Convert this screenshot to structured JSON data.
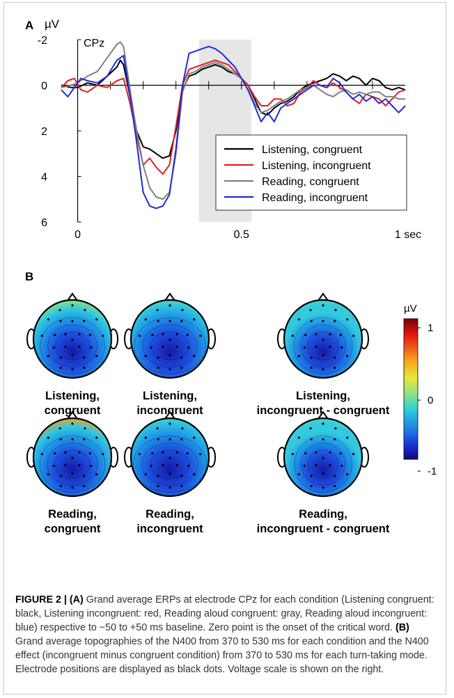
{
  "panel_a": {
    "label": "A",
    "y_unit": "µV",
    "electrode": "CPz",
    "x_unit_label": "1 sec",
    "chart_data": {
      "type": "line",
      "title": "",
      "xlabel": "",
      "ylabel": "µV",
      "xlim": [
        -0.05,
        1.0
      ],
      "ylim": [
        -2,
        6
      ],
      "y_inverted": true,
      "x_ticks": [
        "0",
        "0.5",
        "1 sec"
      ],
      "y_ticks": [
        "-2",
        "0",
        "2",
        "4",
        "6"
      ],
      "highlight_window": [
        0.37,
        0.53
      ],
      "legend_position": "right",
      "series": [
        {
          "name": "Listening, congruent",
          "color": "#000000",
          "x": [
            -0.05,
            -0.02,
            0.0,
            0.03,
            0.06,
            0.09,
            0.12,
            0.13,
            0.14,
            0.16,
            0.18,
            0.2,
            0.22,
            0.24,
            0.26,
            0.28,
            0.3,
            0.32,
            0.34,
            0.36,
            0.38,
            0.4,
            0.42,
            0.44,
            0.46,
            0.48,
            0.5,
            0.52,
            0.54,
            0.56,
            0.58,
            0.6,
            0.62,
            0.64,
            0.66,
            0.68,
            0.7,
            0.72,
            0.74,
            0.76,
            0.78,
            0.8,
            0.82,
            0.84,
            0.86,
            0.88,
            0.9,
            0.92,
            0.94,
            0.96,
            0.98,
            1.0
          ],
          "y": [
            0.0,
            0.1,
            0.1,
            -0.1,
            0.0,
            -0.4,
            -0.8,
            -1.1,
            -0.9,
            0.5,
            2.0,
            2.7,
            2.8,
            3.0,
            3.2,
            3.1,
            2.0,
            0.2,
            -0.4,
            -0.5,
            -0.7,
            -0.8,
            -0.9,
            -0.8,
            -0.6,
            -0.5,
            -0.3,
            0.0,
            0.6,
            1.2,
            1.3,
            1.0,
            0.8,
            0.7,
            0.5,
            0.2,
            0.0,
            -0.1,
            -0.2,
            -0.3,
            -0.5,
            -0.4,
            -0.2,
            -0.4,
            -0.3,
            0.0,
            -0.3,
            -0.2,
            0.1,
            0.2,
            0.1,
            0.2
          ]
        },
        {
          "name": "Listening, incongruent",
          "color": "#e0201e",
          "x": [
            -0.05,
            -0.03,
            -0.01,
            0.01,
            0.03,
            0.06,
            0.09,
            0.12,
            0.14,
            0.16,
            0.18,
            0.2,
            0.22,
            0.24,
            0.26,
            0.28,
            0.3,
            0.32,
            0.34,
            0.36,
            0.38,
            0.4,
            0.42,
            0.44,
            0.46,
            0.48,
            0.5,
            0.52,
            0.54,
            0.56,
            0.58,
            0.6,
            0.62,
            0.64,
            0.66,
            0.68,
            0.7,
            0.72,
            0.74,
            0.76,
            0.78,
            0.8,
            0.82,
            0.84,
            0.86,
            0.88,
            0.9,
            0.92,
            0.94,
            0.96,
            0.98,
            1.0
          ],
          "y": [
            0.1,
            -0.2,
            -0.3,
            0.2,
            0.3,
            0.0,
            0.1,
            -0.2,
            -0.3,
            0.8,
            2.2,
            3.5,
            3.2,
            3.6,
            3.9,
            3.5,
            1.8,
            0.0,
            -0.7,
            -0.8,
            -0.9,
            -1.0,
            -1.1,
            -1.0,
            -0.9,
            -0.6,
            -0.3,
            0.0,
            0.5,
            0.9,
            0.9,
            0.6,
            0.6,
            0.9,
            0.8,
            0.3,
            0.1,
            -0.2,
            0.0,
            0.1,
            -0.1,
            0.1,
            0.3,
            0.6,
            0.8,
            0.4,
            0.5,
            0.6,
            0.9,
            0.6,
            0.3,
            0.2
          ]
        },
        {
          "name": "Reading, congruent",
          "color": "#7f7f7f",
          "x": [
            -0.05,
            -0.02,
            0.0,
            0.03,
            0.06,
            0.09,
            0.12,
            0.13,
            0.14,
            0.16,
            0.18,
            0.2,
            0.22,
            0.24,
            0.26,
            0.28,
            0.3,
            0.32,
            0.34,
            0.36,
            0.38,
            0.4,
            0.42,
            0.44,
            0.46,
            0.48,
            0.5,
            0.52,
            0.54,
            0.56,
            0.58,
            0.6,
            0.62,
            0.64,
            0.66,
            0.68,
            0.7,
            0.72,
            0.74,
            0.76,
            0.78,
            0.8,
            0.82,
            0.84,
            0.86,
            0.88,
            0.9,
            0.92,
            0.94,
            0.96,
            0.98,
            1.0
          ],
          "y": [
            0.1,
            0.0,
            -0.1,
            -0.4,
            -0.6,
            -1.2,
            -1.8,
            -1.9,
            -1.7,
            0.2,
            2.0,
            3.5,
            4.5,
            4.9,
            5.0,
            4.7,
            3.0,
            0.3,
            -0.5,
            -0.6,
            -0.8,
            -0.9,
            -1.0,
            -0.9,
            -0.7,
            -0.5,
            -0.3,
            0.2,
            0.8,
            1.2,
            1.1,
            0.9,
            0.7,
            0.6,
            0.4,
            0.2,
            0.1,
            0.0,
            0.2,
            0.4,
            0.5,
            0.3,
            0.2,
            0.4,
            0.3,
            0.4,
            0.3,
            0.3,
            0.5,
            0.5,
            0.6,
            0.6
          ]
        },
        {
          "name": "Reading, incongruent",
          "color": "#1f2bd6",
          "x": [
            -0.05,
            -0.03,
            -0.01,
            0.01,
            0.03,
            0.06,
            0.09,
            0.12,
            0.14,
            0.16,
            0.18,
            0.2,
            0.22,
            0.24,
            0.26,
            0.28,
            0.3,
            0.32,
            0.34,
            0.36,
            0.38,
            0.4,
            0.42,
            0.44,
            0.46,
            0.48,
            0.5,
            0.52,
            0.54,
            0.56,
            0.58,
            0.6,
            0.62,
            0.64,
            0.66,
            0.68,
            0.7,
            0.72,
            0.74,
            0.76,
            0.78,
            0.8,
            0.82,
            0.84,
            0.86,
            0.88,
            0.9,
            0.92,
            0.94,
            0.96,
            0.98,
            1.0
          ],
          "y": [
            0.2,
            0.5,
            0.1,
            -0.3,
            -0.2,
            -0.1,
            -0.4,
            -1.1,
            -1.3,
            0.5,
            2.5,
            4.7,
            5.3,
            5.4,
            5.3,
            4.8,
            2.8,
            0.0,
            -1.4,
            -1.5,
            -1.6,
            -1.7,
            -1.6,
            -1.4,
            -1.1,
            -0.8,
            -0.3,
            0.2,
            0.9,
            1.6,
            1.2,
            1.6,
            1.0,
            0.8,
            0.6,
            0.4,
            0.2,
            0.0,
            0.0,
            0.1,
            -0.3,
            -0.1,
            0.3,
            0.6,
            0.4,
            0.7,
            0.5,
            0.8,
            0.6,
            0.9,
            1.2,
            0.9
          ]
        }
      ]
    }
  },
  "panel_b": {
    "label": "B",
    "colorbar": {
      "unit": "µV",
      "ticks": [
        "1",
        "0",
        "-1"
      ]
    },
    "maps": [
      {
        "line1": "Listening,",
        "line2": "congruent",
        "blue_spread": 0.9,
        "warm_front": 0.35
      },
      {
        "line1": "Listening,",
        "line2": "incongruent",
        "blue_spread": 1.25,
        "warm_front": 0.3
      },
      {
        "line1": "Listening,",
        "line2": "incongruent - congruent",
        "blue_spread": 0.6,
        "warm_front": 0.0
      },
      {
        "line1": "Reading,",
        "line2": "congruent",
        "blue_spread": 0.95,
        "warm_front": 0.85
      },
      {
        "line1": "Reading,",
        "line2": "incongruent",
        "blue_spread": 1.35,
        "warm_front": 0.8
      },
      {
        "line1": "Reading,",
        "line2": "incongruent - congruent",
        "blue_spread": 0.55,
        "warm_front": 0.0
      }
    ]
  },
  "caption": {
    "label": "FIGURE 2 |",
    "a_tag": "(A)",
    "a_text": " Grand average ERPs at electrode CPz for each condition (Listening congruent: black, Listening incongruent: red, Reading aloud congruent: gray, Reading aloud incongruent: blue) respective to −50 to +50 ms baseline. Zero point is the onset of the critical word. ",
    "b_tag": "(B)",
    "b_text": " Grand average topographies of the N400 from 370 to 530 ms for each condition and the N400 effect (incongruent minus congruent condition) from 370 to 530 ms for each turn-taking mode. Electrode positions are displayed as black dots. Voltage scale is shown on the right."
  }
}
